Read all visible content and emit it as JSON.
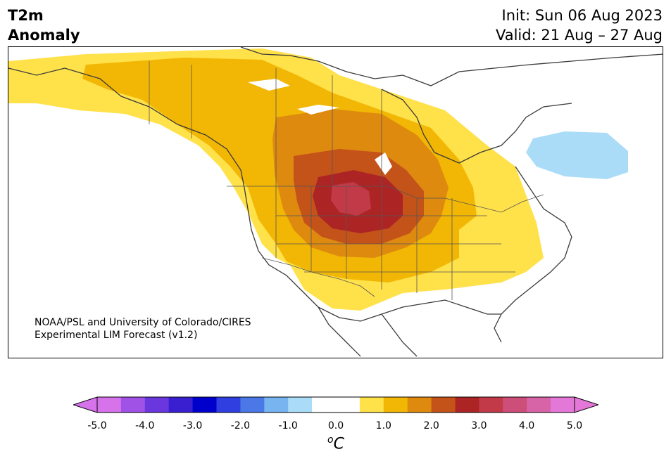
{
  "header": {
    "title_line1": "T2m",
    "title_line2": "Anomaly",
    "init": "Init: Sun 06 Aug 2023",
    "valid": "Valid: 21 Aug – 27 Aug"
  },
  "credit": {
    "line1": "NOAA/PSL and University of Colorado/CIRES",
    "line2": "Experimental LIM Forecast (v1.2)"
  },
  "colorbar": {
    "ticks": [
      "-5.0",
      "-4.0",
      "-3.0",
      "-2.0",
      "-1.0",
      "0.0",
      "1.0",
      "2.0",
      "3.0",
      "4.0",
      "5.0"
    ],
    "unit_base": "C",
    "unit_sup": "o",
    "colors": [
      "#d672ea",
      "#a052e6",
      "#6a36de",
      "#3a1fd0",
      "#0000cd",
      "#2f3fe0",
      "#4a78e6",
      "#78b4f0",
      "#aadcf8",
      "#ffffff",
      "#ffffff",
      "#ffe14a",
      "#f2b705",
      "#de8a0f",
      "#c4531a",
      "#ad2424",
      "#c23a48",
      "#cd4e78",
      "#d864a8",
      "#e478d8"
    ]
  }
}
